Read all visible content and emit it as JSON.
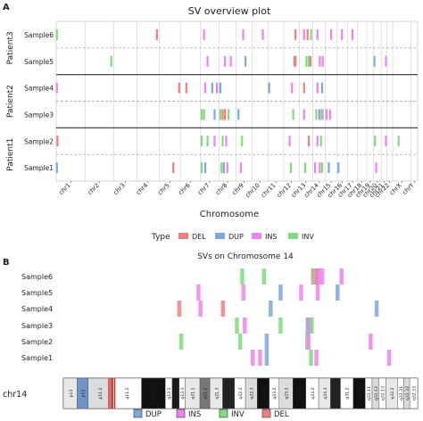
{
  "panel_a_label": "A",
  "panel_b_label": "B",
  "colors": {
    "DEL": "#f08080",
    "DUP": "#7fa7d9",
    "INS": "#ee82ee",
    "INV": "#7fdc7f"
  },
  "chart_data": [
    {
      "type": "scatter",
      "title": "SV overview plot",
      "xlabel": "Chromosome",
      "categories": [
        "chr1",
        "chr2",
        "chr3",
        "chr4",
        "chr5",
        "chr6",
        "chr7",
        "chr8",
        "chr9",
        "chr10",
        "chr11",
        "chr12",
        "chr13",
        "chr14",
        "chr15",
        "chr16",
        "chr17",
        "chr18",
        "chr19",
        "chr20",
        "chr21",
        "chr22",
        "chrX",
        "chrY"
      ],
      "chrom_lengths_mb": [
        249,
        242,
        198,
        190,
        181,
        171,
        159,
        145,
        138,
        134,
        135,
        133,
        114,
        107,
        102,
        90,
        83,
        80,
        59,
        64,
        47,
        51,
        156,
        57
      ],
      "patients": [
        {
          "name": "Patient3",
          "samples": [
            "Sample6",
            "Sample5"
          ]
        },
        {
          "name": "Patient2",
          "samples": [
            "Sample4",
            "Sample3"
          ]
        },
        {
          "name": "Patient1",
          "samples": [
            "Sample2",
            "Sample1"
          ]
        }
      ],
      "legend_title": "Type",
      "legend": [
        "DEL",
        "DUP",
        "INS",
        "INV"
      ],
      "legend_position": "bottom",
      "grid": true,
      "series": [
        {
          "sample": "Sample6",
          "events": [
            [
              "chr1",
              5,
              "INV"
            ],
            [
              "chr4",
              170,
              "DEL"
            ],
            [
              "chr7",
              30,
              "INS"
            ],
            [
              "chr9",
              60,
              "INS"
            ],
            [
              "chr10",
              90,
              "INS"
            ],
            [
              "chr12",
              100,
              "DEL"
            ],
            [
              "chr13",
              40,
              "INS"
            ],
            [
              "chr13",
              70,
              "DEL"
            ],
            [
              "chr13",
              100,
              "INV"
            ],
            [
              "chr14",
              40,
              "INS"
            ],
            [
              "chr15",
              50,
              "INS"
            ],
            [
              "chr16",
              40,
              "INS"
            ],
            [
              "chr17",
              40,
              "INS"
            ]
          ]
        },
        {
          "sample": "Sample5",
          "events": [
            [
              "chr2",
              220,
              "INV"
            ],
            [
              "chr7",
              60,
              "INS"
            ],
            [
              "chr8",
              50,
              "INS"
            ],
            [
              "chr8",
              100,
              "INS"
            ],
            [
              "chr9",
              80,
              "DUP"
            ],
            [
              "chr12",
              90,
              "DEL"
            ],
            [
              "chr12",
              100,
              "DEL"
            ],
            [
              "chr13",
              60,
              "INV"
            ],
            [
              "chr13",
              80,
              "INV"
            ],
            [
              "chr13",
              95,
              "DEL"
            ],
            [
              "chr14",
              60,
              "INS"
            ],
            [
              "chr14",
              85,
              "INS"
            ],
            [
              "chr20",
              5,
              "DUP"
            ],
            [
              "chr21",
              40,
              "INS"
            ]
          ]
        },
        {
          "sample": "Sample4",
          "events": [
            [
              "chr1",
              5,
              "INS"
            ],
            [
              "chr5",
              170,
              "DEL"
            ],
            [
              "chr6",
              50,
              "DEL"
            ],
            [
              "chr7",
              40,
              "INS"
            ],
            [
              "chr7",
              100,
              "DUP"
            ],
            [
              "chr7",
              140,
              "INS"
            ],
            [
              "chr8",
              10,
              "DUP"
            ],
            [
              "chr11",
              10,
              "DUP"
            ],
            [
              "chr12",
              70,
              "INS"
            ],
            [
              "chr13",
              40,
              "DEL"
            ],
            [
              "chr14",
              40,
              "INS"
            ],
            [
              "chr14",
              80,
              "DUP"
            ]
          ]
        },
        {
          "sample": "Sample3",
          "events": [
            [
              "chr7",
              10,
              "INV"
            ],
            [
              "chr7",
              30,
              "INV"
            ],
            [
              "chr7",
              120,
              "DUP"
            ],
            [
              "chr8",
              10,
              "INV"
            ],
            [
              "chr8",
              30,
              "DEL"
            ],
            [
              "chr8",
              50,
              "DEL"
            ],
            [
              "chr8",
              80,
              "INV"
            ],
            [
              "chr9",
              20,
              "DUP"
            ],
            [
              "chr12",
              80,
              "INV"
            ],
            [
              "chr13",
              40,
              "INS"
            ],
            [
              "chr14",
              30,
              "INV"
            ],
            [
              "chr14",
              55,
              "DUP"
            ],
            [
              "chr14",
              75,
              "INS"
            ],
            [
              "chr14",
              85,
              "INV"
            ],
            [
              "chr15",
              10,
              "INS"
            ],
            [
              "chr15",
              40,
              "INS"
            ]
          ]
        },
        {
          "sample": "Sample2",
          "events": [
            [
              "chr1",
              10,
              "DEL"
            ],
            [
              "chr7",
              10,
              "INV"
            ],
            [
              "chr7",
              60,
              "INV"
            ],
            [
              "chr7",
              120,
              "INS"
            ],
            [
              "chr8",
              30,
              "INV"
            ],
            [
              "chr8",
              60,
              "INS"
            ],
            [
              "chr9",
              50,
              "INV"
            ],
            [
              "chr12",
              50,
              "INS"
            ],
            [
              "chr13",
              80,
              "DEL"
            ],
            [
              "chr14",
              40,
              "INS"
            ],
            [
              "chr14",
              70,
              "INV"
            ],
            [
              "chr20",
              10,
              "INV"
            ],
            [
              "chr21",
              40,
              "INS"
            ],
            [
              "chrX",
              50,
              "INV"
            ]
          ]
        },
        {
          "sample": "Sample1",
          "events": [
            [
              "chr1",
              5,
              "DUP"
            ],
            [
              "chr5",
              120,
              "DEL"
            ],
            [
              "chr7",
              10,
              "INV"
            ],
            [
              "chr7",
              40,
              "DUP"
            ],
            [
              "chr8",
              20,
              "INV"
            ],
            [
              "chr8",
              40,
              "DUP"
            ],
            [
              "chr8",
              70,
              "INS"
            ],
            [
              "chr9",
              40,
              "INS"
            ],
            [
              "chr12",
              60,
              "INV"
            ],
            [
              "chr13",
              50,
              "INV"
            ],
            [
              "chr14",
              20,
              "INS"
            ],
            [
              "chr14",
              60,
              "INS"
            ],
            [
              "chr14",
              80,
              "INV"
            ],
            [
              "chr15",
              30,
              "DUP"
            ],
            [
              "chr16",
              10,
              "DUP"
            ],
            [
              "chr20",
              20,
              "INS"
            ]
          ]
        }
      ]
    },
    {
      "type": "scatter",
      "title": "SVs on Chromosome 14",
      "chromosome_label": "chr14",
      "chr_length_mb": 107,
      "samples": [
        "Sample6",
        "Sample5",
        "Sample4",
        "Sample3",
        "Sample2",
        "Sample1"
      ],
      "legend": [
        "DUP",
        "INS",
        "INV",
        "DEL"
      ],
      "legend_position": "bottom",
      "bands": [
        "p13",
        "p12",
        "p11.2",
        "q11.2",
        "q12",
        "q13.1",
        "q13.2",
        "q13.3",
        "q21.1",
        "q21.2",
        "q21.3",
        "q22.1",
        "q22.2",
        "q22.3",
        "q23.1",
        "q23.2",
        "q23.3",
        "q24.1",
        "q24.2",
        "q24.3",
        "q31.1",
        "q31.2",
        "q31.3",
        "q32.11",
        "q32.12",
        "q32.13",
        "q32.2",
        "q32.31",
        "q32.32",
        "q32.33"
      ],
      "series": [
        {
          "sample": "Sample6",
          "events": [
            [
              54.0,
              "INV"
            ],
            [
              60.6,
              "INV"
            ],
            [
              75.4,
              "DEL"
            ],
            [
              75.8,
              "INV"
            ],
            [
              76.4,
              "INS"
            ],
            [
              76.8,
              "DEL"
            ],
            [
              77.2,
              "INS"
            ],
            [
              78.2,
              "INS"
            ],
            [
              84.0,
              "INS"
            ]
          ]
        },
        {
          "sample": "Sample5",
          "events": [
            [
              40.8,
              "INS"
            ],
            [
              54.4,
              "INS"
            ],
            [
              65.6,
              "DUP"
            ],
            [
              71.8,
              "INS"
            ],
            [
              76.8,
              "INS"
            ],
            [
              82.8,
              "DUP"
            ]
          ]
        },
        {
          "sample": "Sample4",
          "events": [
            [
              35.0,
              "DEL"
            ],
            [
              41.4,
              "INS"
            ],
            [
              48.2,
              "DEL"
            ],
            [
              62.6,
              "DUP"
            ],
            [
              94.6,
              "DUP"
            ]
          ]
        },
        {
          "sample": "Sample3",
          "events": [
            [
              52.4,
              "INV"
            ],
            [
              54.8,
              "INS"
            ],
            [
              65.6,
              "INV"
            ],
            [
              73.8,
              "DUP"
            ],
            [
              74.4,
              "INS"
            ],
            [
              75.0,
              "INV"
            ]
          ]
        },
        {
          "sample": "Sample2",
          "events": [
            [
              35.6,
              "INV"
            ],
            [
              53.4,
              "INV"
            ],
            [
              61.4,
              "DUP"
            ],
            [
              73.6,
              "INV"
            ],
            [
              74.0,
              "INS"
            ],
            [
              92.8,
              "INS"
            ]
          ]
        },
        {
          "sample": "Sample1",
          "events": [
            [
              57.2,
              "INS"
            ],
            [
              59.4,
              "INS"
            ],
            [
              61.4,
              "DUP"
            ],
            [
              74.8,
              "INV"
            ],
            [
              76.4,
              "INS"
            ],
            [
              98.4,
              "INS"
            ]
          ]
        }
      ]
    }
  ]
}
